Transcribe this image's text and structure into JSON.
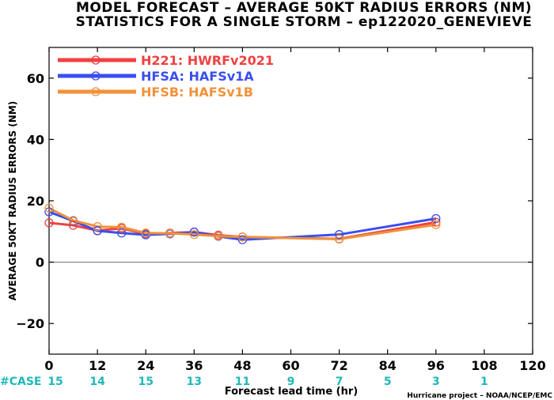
{
  "title": "MODEL FORECAST – AVERAGE 50KT RADIUS ERRORS (NM)",
  "subtitle": "STATISTICS FOR A SINGLE STORM – ep122020_GENEVIEVE",
  "credit": "Hurricane project – NOAA/NCEP/EMC",
  "case_label": "#CASE",
  "chart_data": {
    "type": "line",
    "xlabel": "Forecast lead time (hr)",
    "ylabel": "AVERAGE 50KT RADIUS ERRORS (NM)",
    "xlim": [
      0,
      120
    ],
    "ylim": [
      -30,
      70
    ],
    "xticks": [
      0,
      12,
      24,
      36,
      48,
      60,
      72,
      84,
      96,
      108,
      120
    ],
    "yticks": [
      -20,
      0,
      20,
      40,
      60
    ],
    "grid": false,
    "legend_position": "top-left",
    "zero_line": true,
    "case_counts": [
      {
        "x": 0,
        "n": "15"
      },
      {
        "x": 12,
        "n": "14"
      },
      {
        "x": 24,
        "n": "15"
      },
      {
        "x": 36,
        "n": "13"
      },
      {
        "x": 48,
        "n": "11"
      },
      {
        "x": 60,
        "n": "9"
      },
      {
        "x": 72,
        "n": "7"
      },
      {
        "x": 84,
        "n": "5"
      },
      {
        "x": 96,
        "n": "3"
      },
      {
        "x": 108,
        "n": "1"
      }
    ],
    "series": [
      {
        "name": "H221: HWRFv2021",
        "color": "#f04040",
        "x": [
          0,
          6,
          12,
          18,
          24,
          30,
          36,
          42,
          48,
          72,
          96
        ],
        "y": [
          12.8,
          12.0,
          10.3,
          11.0,
          9.2,
          9.5,
          9.8,
          8.8,
          8.2,
          7.6,
          13.0
        ]
      },
      {
        "name": "HFSA: HAFSv1A",
        "color": "#3a4ef0",
        "x": [
          0,
          6,
          12,
          18,
          24,
          30,
          36,
          42,
          48,
          72,
          96
        ],
        "y": [
          16.4,
          13.4,
          10.2,
          9.5,
          8.9,
          9.2,
          9.8,
          8.4,
          7.3,
          9.0,
          14.2
        ]
      },
      {
        "name": "HFSB: HAFSv1B",
        "color": "#f0923a",
        "x": [
          0,
          6,
          12,
          18,
          24,
          30,
          36,
          42,
          48,
          72,
          96
        ],
        "y": [
          17.6,
          13.6,
          11.6,
          11.4,
          9.5,
          9.4,
          9.0,
          8.5,
          8.2,
          7.5,
          12.2
        ]
      }
    ]
  }
}
